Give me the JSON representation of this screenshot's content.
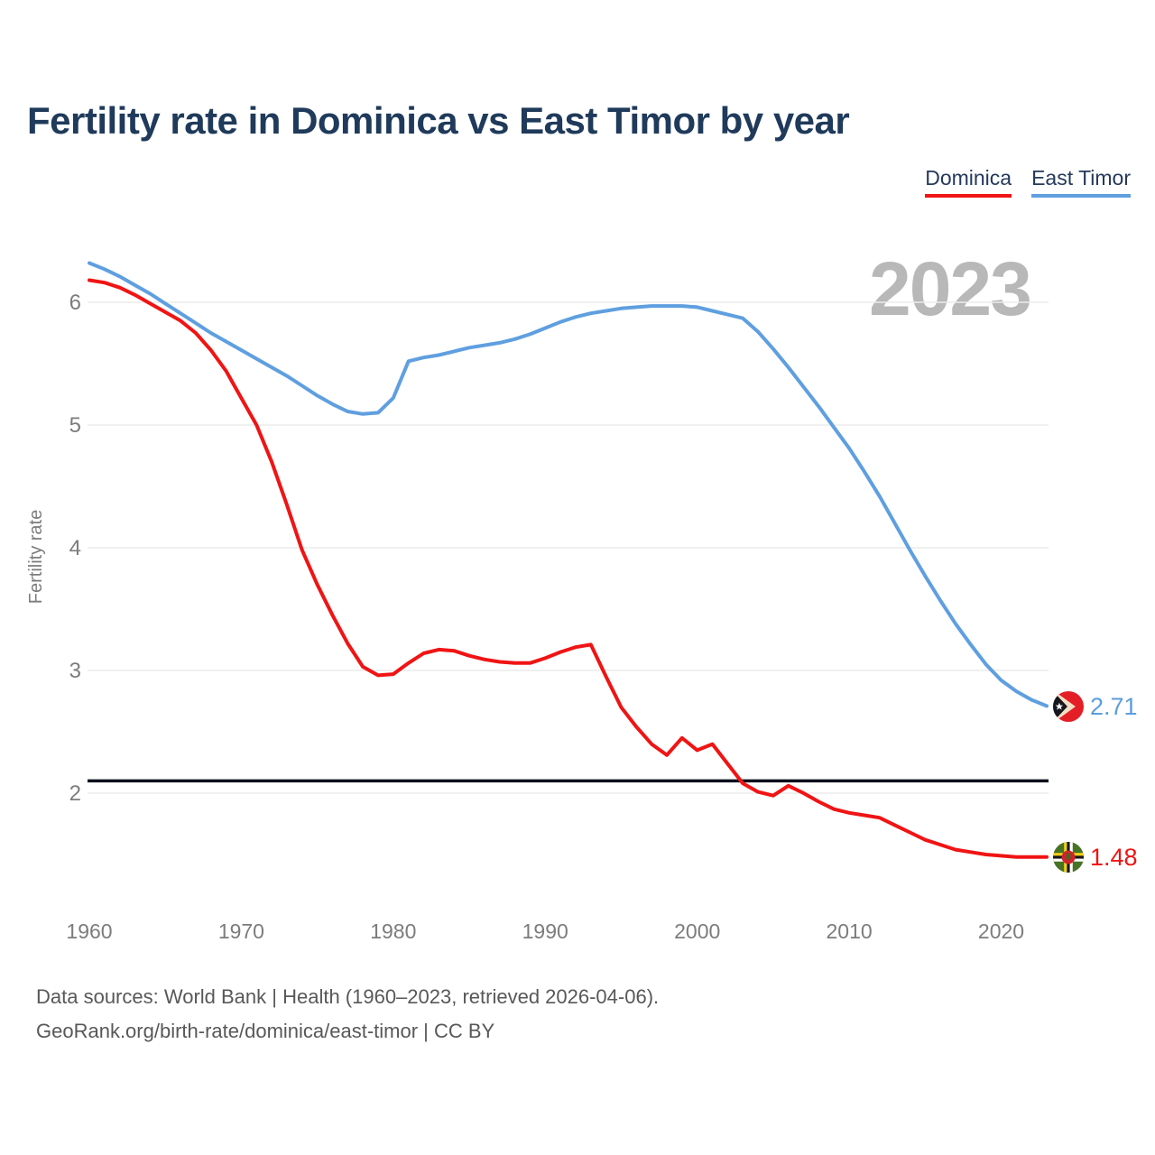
{
  "page": {
    "title": "Fertility rate in Dominica vs East Timor by year",
    "watermark_year": "2023",
    "footer_line1": "Data sources: World Bank | Health (1960–2023, retrieved 2026-04-06).",
    "footer_line2": "GeoRank.org/birth-rate/dominica/east-timor | CC BY"
  },
  "legend": {
    "items": [
      {
        "label": "Dominica",
        "color": "#f01414"
      },
      {
        "label": "East Timor",
        "color": "#5f9fe0"
      }
    ]
  },
  "chart_data": {
    "type": "line",
    "title": "Fertility rate in Dominica vs East Timor by year",
    "xlabel": "",
    "ylabel": "Fertility rate",
    "x": {
      "start": 1960,
      "end": 2023,
      "step": 1
    },
    "x_ticks": [
      1960,
      1970,
      1980,
      1990,
      2000,
      2010,
      2020
    ],
    "y_ticks": [
      2,
      3,
      4,
      5,
      6
    ],
    "ylim": [
      1.3,
      6.45
    ],
    "grid": "horizontal",
    "legend_position": "top-right",
    "watermark": "2023",
    "reference_line": {
      "value": 2.1,
      "color": "#0c101c"
    },
    "series": [
      {
        "name": "Dominica",
        "color": "#f01414",
        "end_value_label": "1.48",
        "values": [
          6.18,
          6.16,
          6.12,
          6.06,
          5.99,
          5.92,
          5.85,
          5.75,
          5.61,
          5.44,
          5.22,
          5.0,
          4.7,
          4.35,
          3.98,
          3.7,
          3.45,
          3.22,
          3.03,
          2.96,
          2.97,
          3.06,
          3.14,
          3.17,
          3.16,
          3.12,
          3.09,
          3.07,
          3.06,
          3.06,
          3.1,
          3.15,
          3.19,
          3.21,
          2.95,
          2.7,
          2.54,
          2.4,
          2.31,
          2.45,
          2.35,
          2.4,
          2.24,
          2.08,
          2.01,
          1.98,
          2.06,
          2.0,
          1.93,
          1.87,
          1.84,
          1.82,
          1.8,
          1.74,
          1.68,
          1.62,
          1.58,
          1.54,
          1.52,
          1.5,
          1.49,
          1.48,
          1.48,
          1.48
        ]
      },
      {
        "name": "East Timor",
        "color": "#5f9fe0",
        "end_value_label": "2.71",
        "values": [
          6.32,
          6.27,
          6.21,
          6.14,
          6.07,
          5.99,
          5.91,
          5.83,
          5.75,
          5.68,
          5.61,
          5.54,
          5.47,
          5.4,
          5.32,
          5.24,
          5.17,
          5.11,
          5.09,
          5.1,
          5.22,
          5.52,
          5.55,
          5.57,
          5.6,
          5.63,
          5.65,
          5.67,
          5.7,
          5.74,
          5.79,
          5.84,
          5.88,
          5.91,
          5.93,
          5.95,
          5.96,
          5.97,
          5.97,
          5.97,
          5.96,
          5.93,
          5.9,
          5.87,
          5.76,
          5.62,
          5.47,
          5.31,
          5.15,
          4.98,
          4.81,
          4.62,
          4.42,
          4.2,
          3.98,
          3.77,
          3.57,
          3.38,
          3.21,
          3.05,
          2.92,
          2.83,
          2.76,
          2.71
        ]
      }
    ]
  }
}
